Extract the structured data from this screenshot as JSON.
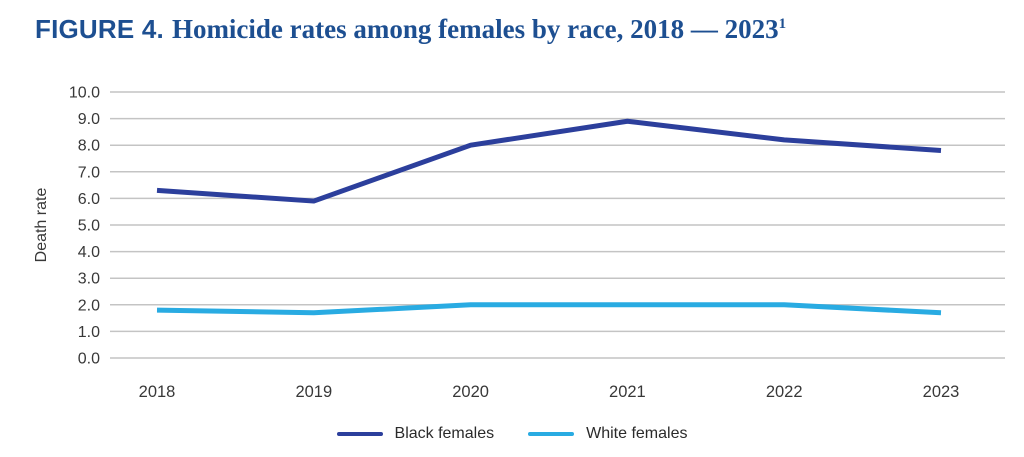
{
  "title": {
    "prefix": "FIGURE 4.",
    "text": "Homicide rates among females by race, 2018 — 2023",
    "superscript": "1"
  },
  "chart_data": {
    "type": "line",
    "categories": [
      "2018",
      "2019",
      "2020",
      "2021",
      "2022",
      "2023"
    ],
    "series": [
      {
        "name": "Black females",
        "color": "#2c3f9c",
        "values": [
          6.3,
          5.9,
          8.0,
          8.9,
          8.2,
          7.8
        ]
      },
      {
        "name": "White females",
        "color": "#29abe2",
        "values": [
          1.8,
          1.7,
          2.0,
          2.0,
          2.0,
          1.7
        ]
      }
    ],
    "xlabel": "",
    "ylabel": "Death rate",
    "ylim": [
      0,
      10
    ],
    "ytick_step": 1.0,
    "ytick_labels": [
      "0.0",
      "1.0",
      "2.0",
      "3.0",
      "4.0",
      "5.0",
      "6.0",
      "7.0",
      "8.0",
      "9.0",
      "10.0"
    ],
    "grid": true,
    "legend_position": "bottom"
  },
  "colors": {
    "title": "#1d4f91",
    "grid": "#c4c4c4",
    "axis_text": "#383838",
    "background": "#ffffff"
  }
}
